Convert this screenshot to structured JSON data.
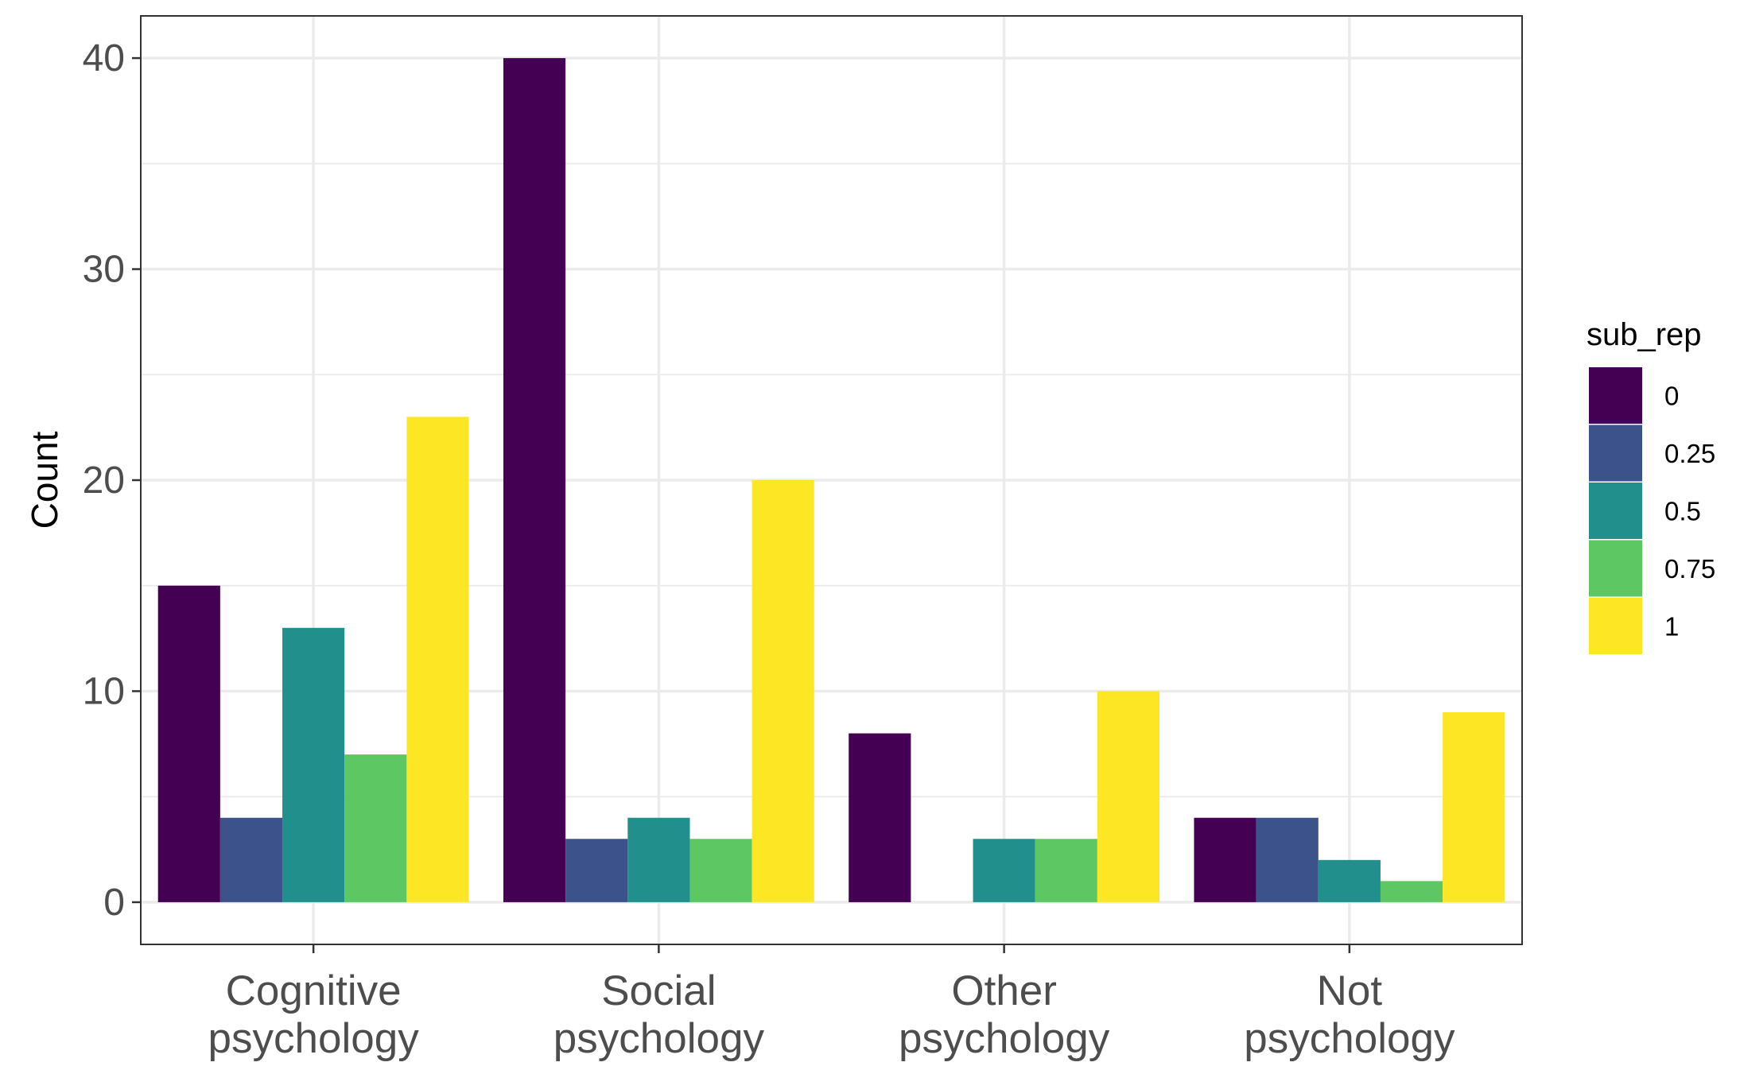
{
  "chart_data": {
    "type": "bar",
    "categories": [
      [
        "Cognitive",
        "psychology"
      ],
      [
        "Social",
        "psychology"
      ],
      [
        "Other",
        "psychology"
      ],
      [
        "Not",
        "psychology"
      ]
    ],
    "series": [
      {
        "name": "0",
        "color": "#440154",
        "values": [
          15,
          40,
          8,
          4
        ]
      },
      {
        "name": "0.25",
        "color": "#3B528B",
        "values": [
          4,
          3,
          0,
          4
        ]
      },
      {
        "name": "0.5",
        "color": "#21908C",
        "values": [
          13,
          4,
          3,
          2
        ]
      },
      {
        "name": "0.75",
        "color": "#5DC863",
        "values": [
          7,
          3,
          3,
          1
        ]
      },
      {
        "name": "1",
        "color": "#FDE725",
        "values": [
          23,
          20,
          10,
          9
        ]
      }
    ],
    "xlabel": "",
    "ylabel": "Count",
    "ylim": [
      -2,
      42
    ],
    "yticks": [
      0,
      10,
      20,
      30,
      40
    ],
    "legend_title": "sub_rep",
    "legend_position": "right",
    "grid": true
  }
}
